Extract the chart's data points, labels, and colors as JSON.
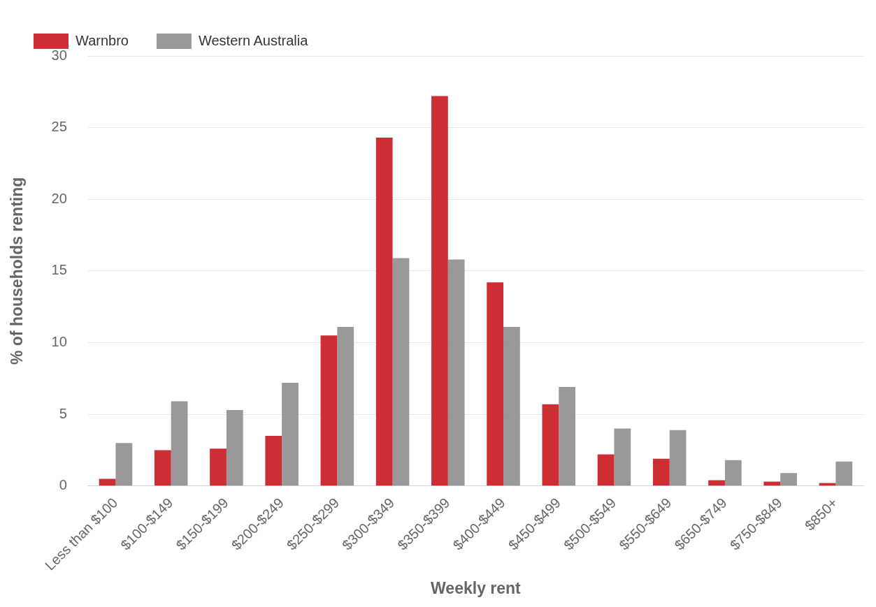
{
  "chart_data": {
    "type": "bar",
    "xlabel": "Weekly rent",
    "ylabel": "% of households renting",
    "categories": [
      "Less than $100",
      "$100-$149",
      "$150-$199",
      "$200-$249",
      "$250-$299",
      "$300-$349",
      "$350-$399",
      "$400-$449",
      "$450-$499",
      "$500-$549",
      "$550-$649",
      "$650-$749",
      "$750-$849",
      "$850+"
    ],
    "series": [
      {
        "name": "Warnbro",
        "color": "#cc2e34",
        "values": [
          0.5,
          2.5,
          2.6,
          3.5,
          10.5,
          24.3,
          27.2,
          14.2,
          5.7,
          2.2,
          1.9,
          0.4,
          0.3,
          0.2
        ]
      },
      {
        "name": "Western Australia",
        "color": "#999999",
        "values": [
          3.0,
          5.9,
          5.3,
          7.2,
          11.1,
          15.9,
          15.8,
          11.1,
          6.9,
          4.0,
          3.9,
          1.8,
          0.9,
          1.7
        ]
      }
    ],
    "ylim": [
      0,
      30
    ],
    "yticks": [
      0,
      5,
      10,
      15,
      20,
      25,
      30
    ],
    "grid": "y",
    "legend": "top left"
  }
}
